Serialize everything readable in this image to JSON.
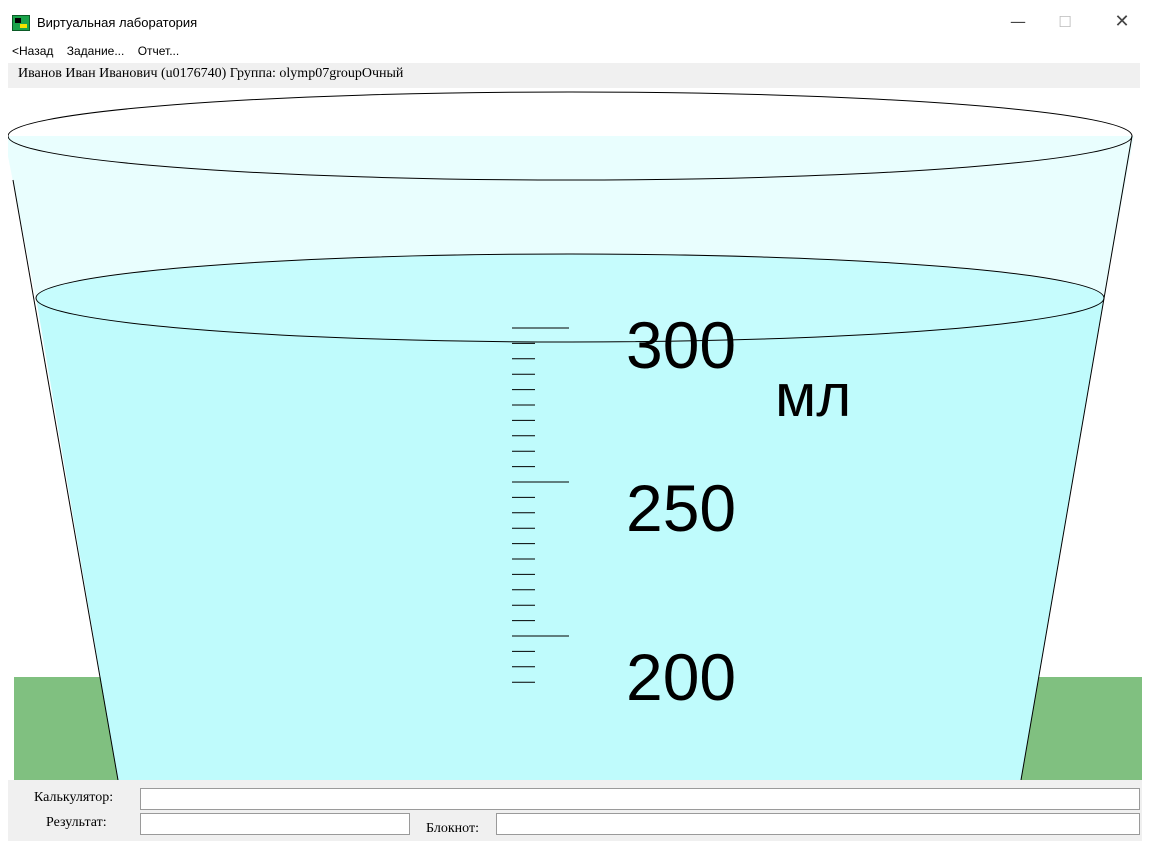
{
  "window": {
    "title": "Виртуальная лаборатория",
    "controls": {
      "minimize": "—",
      "maximize": "☐",
      "close": "✕"
    }
  },
  "menu": {
    "back": "<Назад",
    "task": "Задание...",
    "report": "Отчет..."
  },
  "user": {
    "info": "Иванов Иван Иванович (u0176740)  Группа: olymp07groupОчный"
  },
  "beaker": {
    "labels": {
      "300": "300",
      "250": "250",
      "200": "200"
    },
    "unit": "мл",
    "colors": {
      "liquid": "#bffbfc",
      "glass": "#e9fefe",
      "table": "#80c080"
    }
  },
  "bottom": {
    "calculator_label": "Калькулятор:",
    "calculator_value": "",
    "result_label": "Результат:",
    "result_value": "",
    "notepad_label": "Блокнот:",
    "notepad_value": ""
  }
}
